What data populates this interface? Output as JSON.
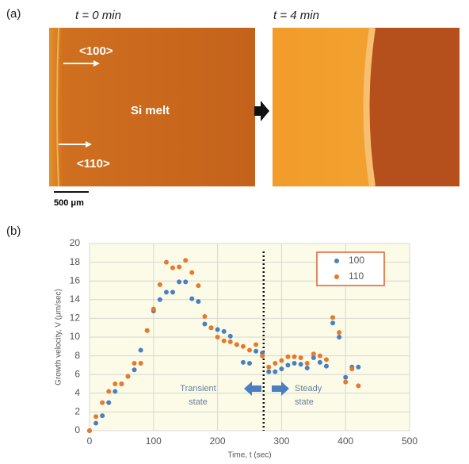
{
  "figure": {
    "panel_a": {
      "label": "(a)",
      "left_time": "t = 0 min",
      "right_time": "t = 4 min",
      "dir_1": "<100>",
      "dir_2": "<110>",
      "melt": "Si melt",
      "scale": "500 μm"
    },
    "panel_b": {
      "label": "(b)"
    }
  },
  "chart_data": {
    "type": "scatter",
    "x_label": "Time, t (sec)",
    "y_label": "Growth velocity, V (μm/sec)",
    "x": [
      0,
      10,
      20,
      30,
      40,
      50,
      60,
      70,
      80,
      90,
      100,
      110,
      120,
      130,
      140,
      150,
      160,
      170,
      180,
      190,
      200,
      210,
      220,
      230,
      240,
      250,
      260,
      270,
      280,
      290,
      300,
      310,
      320,
      330,
      340,
      350,
      360,
      370,
      380,
      390,
      400,
      410,
      420
    ],
    "series": [
      {
        "name": "100",
        "color": "#4a7fc1",
        "values": [
          0,
          0.8,
          1.6,
          3.0,
          4.2,
          5.0,
          5.8,
          6.5,
          8.6,
          10.7,
          12.8,
          14.0,
          14.8,
          14.8,
          15.9,
          15.9,
          14.1,
          13.8,
          11.4,
          11.0,
          10.8,
          10.6,
          10.1,
          9.2,
          7.3,
          7.2,
          8.5,
          8.3,
          6.3,
          6.3,
          6.6,
          7.0,
          7.2,
          7.1,
          6.7,
          7.8,
          7.3,
          6.9,
          11.5,
          10.0,
          5.7,
          6.8,
          6.8
        ]
      },
      {
        "name": "110",
        "color": "#e8792a",
        "values": [
          0,
          1.5,
          3.0,
          4.2,
          5.0,
          5.0,
          5.8,
          7.2,
          7.2,
          10.7,
          13.0,
          15.6,
          18.0,
          17.4,
          17.5,
          18.2,
          16.9,
          15.5,
          12.2,
          11.0,
          10.0,
          9.6,
          9.5,
          9.2,
          9.0,
          8.6,
          9.2,
          8.0,
          6.8,
          7.2,
          7.5,
          7.9,
          7.9,
          7.8,
          7.2,
          8.2,
          8.0,
          7.6,
          12.1,
          10.5,
          5.2,
          6.6,
          4.8
        ]
      }
    ],
    "xlim": [
      0,
      500
    ],
    "xticks": [
      0,
      100,
      200,
      300,
      400,
      500
    ],
    "ylim": [
      0,
      20
    ],
    "yticks": [
      0,
      2,
      4,
      6,
      8,
      10,
      12,
      14,
      16,
      18,
      20
    ],
    "grid": true,
    "legend": "upper right",
    "divider_x": 272,
    "annotations": [
      {
        "lines": [
          "Transient",
          "state"
        ]
      },
      {
        "lines": [
          "Steady",
          "state"
        ]
      }
    ]
  }
}
